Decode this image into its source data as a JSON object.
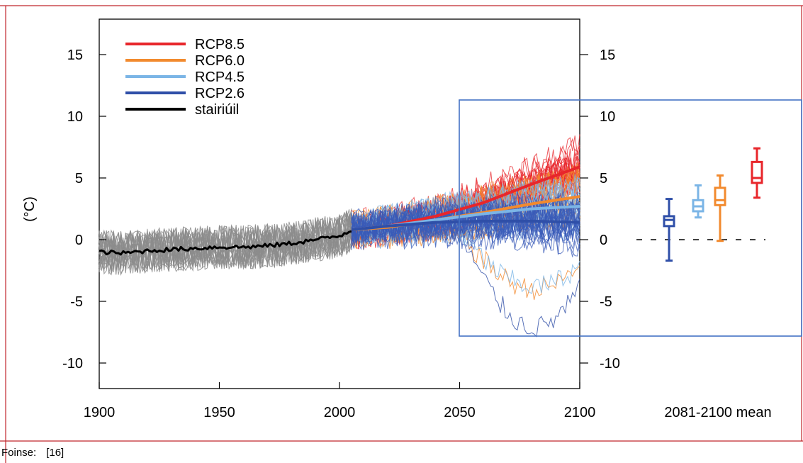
{
  "chart_data": {
    "type": "line",
    "title": "",
    "xlabel": "",
    "ylabel": "(°C)",
    "xlim": [
      1900,
      2100
    ],
    "ylim": [
      -12,
      17
    ],
    "x_ticks": [
      "1900",
      "1950",
      "2000",
      "2050",
      "2100"
    ],
    "y_ticks": [
      "15",
      "10",
      "5",
      "0",
      "-5",
      "-10"
    ],
    "right_y_ticks": [
      "15",
      "10",
      "5",
      "0",
      "-5",
      "-10"
    ],
    "legend_position": "top-left",
    "grid": false,
    "series": [
      {
        "name": "stairiúil",
        "color": "#000000",
        "x": [
          1900,
          1910,
          1920,
          1930,
          1940,
          1950,
          1960,
          1970,
          1980,
          1990,
          2000,
          2005
        ],
        "values": [
          -1.0,
          -1.1,
          -0.9,
          -0.8,
          -0.7,
          -0.6,
          -0.6,
          -0.5,
          -0.3,
          0.0,
          0.3,
          0.8
        ]
      },
      {
        "name": "RCP8.5",
        "color": "#e8262b",
        "x": [
          2005,
          2020,
          2040,
          2060,
          2080,
          2100
        ],
        "values": [
          0.8,
          1.1,
          1.9,
          3.0,
          4.5,
          5.9
        ]
      },
      {
        "name": "RCP6.0",
        "color": "#f28a2e",
        "x": [
          2005,
          2020,
          2040,
          2060,
          2080,
          2100
        ],
        "values": [
          0.8,
          1.0,
          1.6,
          2.2,
          2.9,
          3.5
        ]
      },
      {
        "name": "RCP4.5",
        "color": "#7bb5e6",
        "x": [
          2005,
          2020,
          2040,
          2060,
          2080,
          2100
        ],
        "values": [
          0.8,
          1.1,
          1.6,
          2.1,
          2.5,
          2.7
        ]
      },
      {
        "name": "RCP2.6",
        "color": "#2f4fa8",
        "x": [
          2005,
          2020,
          2040,
          2060,
          2080,
          2100
        ],
        "values": [
          0.8,
          1.1,
          1.4,
          1.5,
          1.5,
          1.4
        ]
      }
    ],
    "boxplots": {
      "label": "2081-2100 mean",
      "items": [
        {
          "name": "RCP2.6",
          "color": "#2f4fa8",
          "min": -1.7,
          "q1": 1.1,
          "median": 1.6,
          "q3": 1.9,
          "max": 3.3
        },
        {
          "name": "RCP4.5",
          "color": "#7bb5e6",
          "min": 1.8,
          "q1": 2.3,
          "median": 2.7,
          "q3": 3.2,
          "max": 4.4
        },
        {
          "name": "RCP6.0",
          "color": "#f28a2e",
          "min": -0.1,
          "q1": 2.8,
          "median": 3.2,
          "q3": 4.2,
          "max": 5.2
        },
        {
          "name": "RCP8.5",
          "color": "#e8262b",
          "min": 3.4,
          "q1": 4.6,
          "median": 5.0,
          "q3": 6.3,
          "max": 7.4
        }
      ]
    }
  },
  "source": {
    "label": "Foinse:",
    "ref": "[16]"
  }
}
